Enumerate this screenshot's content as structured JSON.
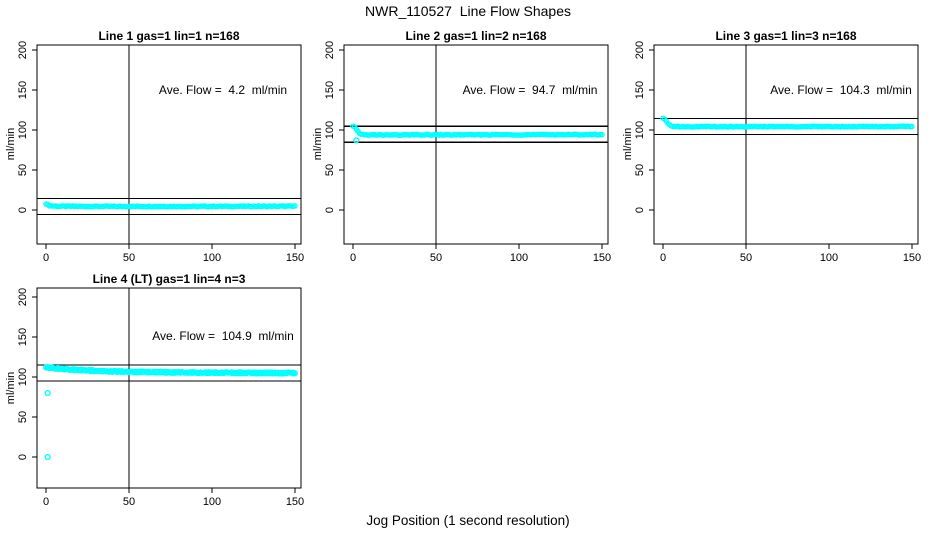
{
  "figure": {
    "title": "NWR_110527  Line Flow Shapes",
    "xlabel": "Jog Position (1 second resolution)",
    "point_color": "#00FFFF",
    "line_color": "#000000",
    "background": "#FFFFFF"
  },
  "chart_data": [
    {
      "type": "scatter",
      "title": "Line 1 gas=1 lin=1 n=168",
      "annotation": "Ave. Flow =  4.2  ml/min",
      "ave_flow": 4.2,
      "ylabel": "ml/min",
      "x_ticks": [
        0,
        50,
        100,
        150
      ],
      "y_ticks": [
        0,
        50,
        100,
        150,
        200
      ],
      "xlim": [
        0,
        150
      ],
      "ylim": [
        0,
        200
      ],
      "ref_line_x": 50,
      "ref_lines_y": [
        14.2,
        -5.8
      ],
      "n_points": 168,
      "passes": 1,
      "jitter": 0.55,
      "series_anchor_points": [
        [
          0,
          8
        ],
        [
          1,
          6.5
        ],
        [
          2,
          5.6
        ],
        [
          4,
          5
        ],
        [
          8,
          4.7
        ],
        [
          30,
          4.5
        ],
        [
          80,
          4.5
        ],
        [
          150,
          4.7
        ]
      ],
      "outliers": []
    },
    {
      "type": "scatter",
      "title": "Line 2 gas=1 lin=2 n=168",
      "annotation": "Ave. Flow =  94.7  ml/min",
      "ave_flow": 94.7,
      "ylabel": "ml/min",
      "x_ticks": [
        0,
        50,
        100,
        150
      ],
      "y_ticks": [
        0,
        50,
        100,
        150,
        200
      ],
      "xlim": [
        0,
        150
      ],
      "ylim": [
        0,
        200
      ],
      "ref_line_x": 50,
      "ref_lines_y": [
        104.7,
        84.7
      ],
      "n_points": 168,
      "passes": 1,
      "jitter": 0.55,
      "series_anchor_points": [
        [
          0,
          104.5
        ],
        [
          1,
          103.5
        ],
        [
          2,
          100.5
        ],
        [
          3,
          98
        ],
        [
          4,
          96
        ],
        [
          5,
          94.8
        ],
        [
          7,
          94
        ],
        [
          15,
          93.8
        ],
        [
          60,
          94
        ],
        [
          150,
          94.3
        ]
      ],
      "outliers": [
        [
          2,
          87
        ]
      ]
    },
    {
      "type": "scatter",
      "title": "Line 3 gas=1 lin=3 n=168",
      "annotation": "Ave. Flow =  104.3  ml/min",
      "ave_flow": 104.3,
      "ylabel": "ml/min",
      "x_ticks": [
        0,
        50,
        100,
        150
      ],
      "y_ticks": [
        0,
        50,
        100,
        150,
        200
      ],
      "xlim": [
        0,
        150
      ],
      "ylim": [
        0,
        200
      ],
      "ref_line_x": 50,
      "ref_lines_y": [
        114.3,
        94.3
      ],
      "n_points": 168,
      "passes": 1,
      "jitter": 0.55,
      "series_anchor_points": [
        [
          0,
          115
        ],
        [
          1,
          114
        ],
        [
          2,
          111.5
        ],
        [
          3,
          108.5
        ],
        [
          4,
          106.3
        ],
        [
          6,
          104.8
        ],
        [
          10,
          104.2
        ],
        [
          60,
          104.2
        ],
        [
          150,
          104.4
        ]
      ],
      "outliers": []
    },
    {
      "type": "scatter",
      "title": "Line 4 (LT) gas=1 lin=4 n=3",
      "annotation": "Ave. Flow =  104.9  ml/min",
      "ave_flow": 104.9,
      "ylabel": "ml/min",
      "x_ticks": [
        0,
        50,
        100,
        150
      ],
      "y_ticks": [
        0,
        50,
        100,
        150,
        200
      ],
      "xlim": [
        0,
        150
      ],
      "ylim": [
        0,
        200
      ],
      "ref_line_x": 50,
      "ref_lines_y": [
        114.9,
        94.9
      ],
      "n_points": 3,
      "passes": 3,
      "jitter": 1.1,
      "series_anchor_points": [
        [
          0,
          112
        ],
        [
          3,
          111.5
        ],
        [
          8,
          110.5
        ],
        [
          15,
          109.3
        ],
        [
          25,
          108.2
        ],
        [
          40,
          107
        ],
        [
          60,
          106.3
        ],
        [
          90,
          105.6
        ],
        [
          120,
          105.2
        ],
        [
          150,
          104.9
        ]
      ],
      "outliers": [
        [
          1,
          80
        ],
        [
          1,
          0
        ]
      ]
    }
  ]
}
